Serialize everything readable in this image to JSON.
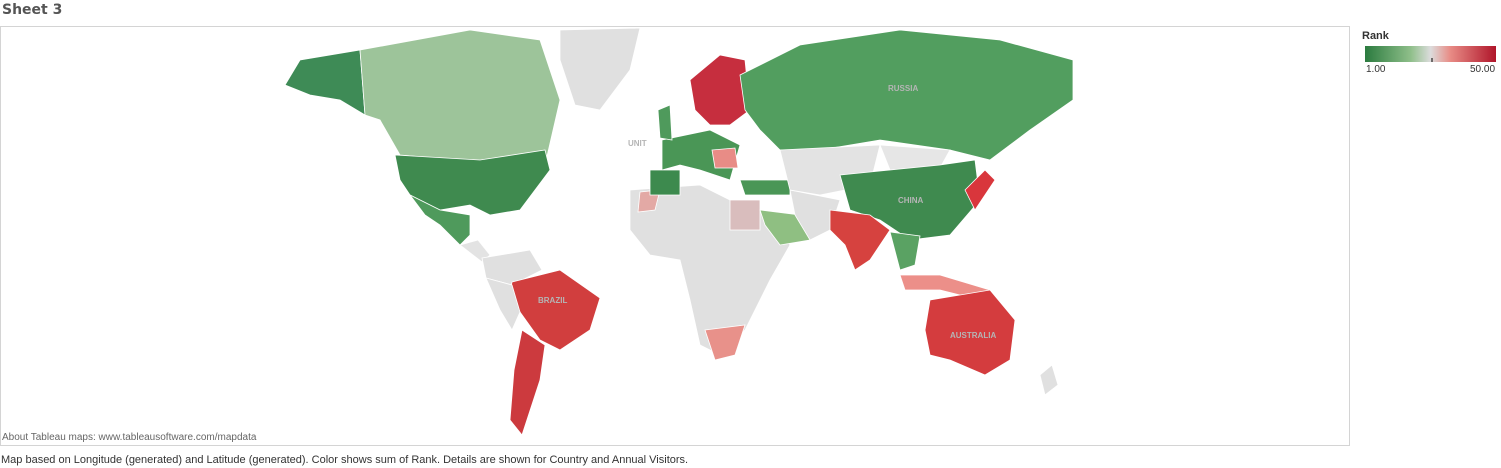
{
  "title": "Sheet 3",
  "legend": {
    "title": "Rank",
    "min_label": "1.00",
    "max_label": "50.00"
  },
  "map": {
    "labels": [
      "RUSSIA",
      "CHINA",
      "BRAZIL",
      "AUSTRALIA",
      "UNIT"
    ],
    "attribution": "About Tableau maps: www.tableausoftware.com/mapdata"
  },
  "caption": "Map based on Longitude (generated) and Latitude (generated).  Color shows sum of Rank.  Details are shown for Country and Annual Visitors."
}
